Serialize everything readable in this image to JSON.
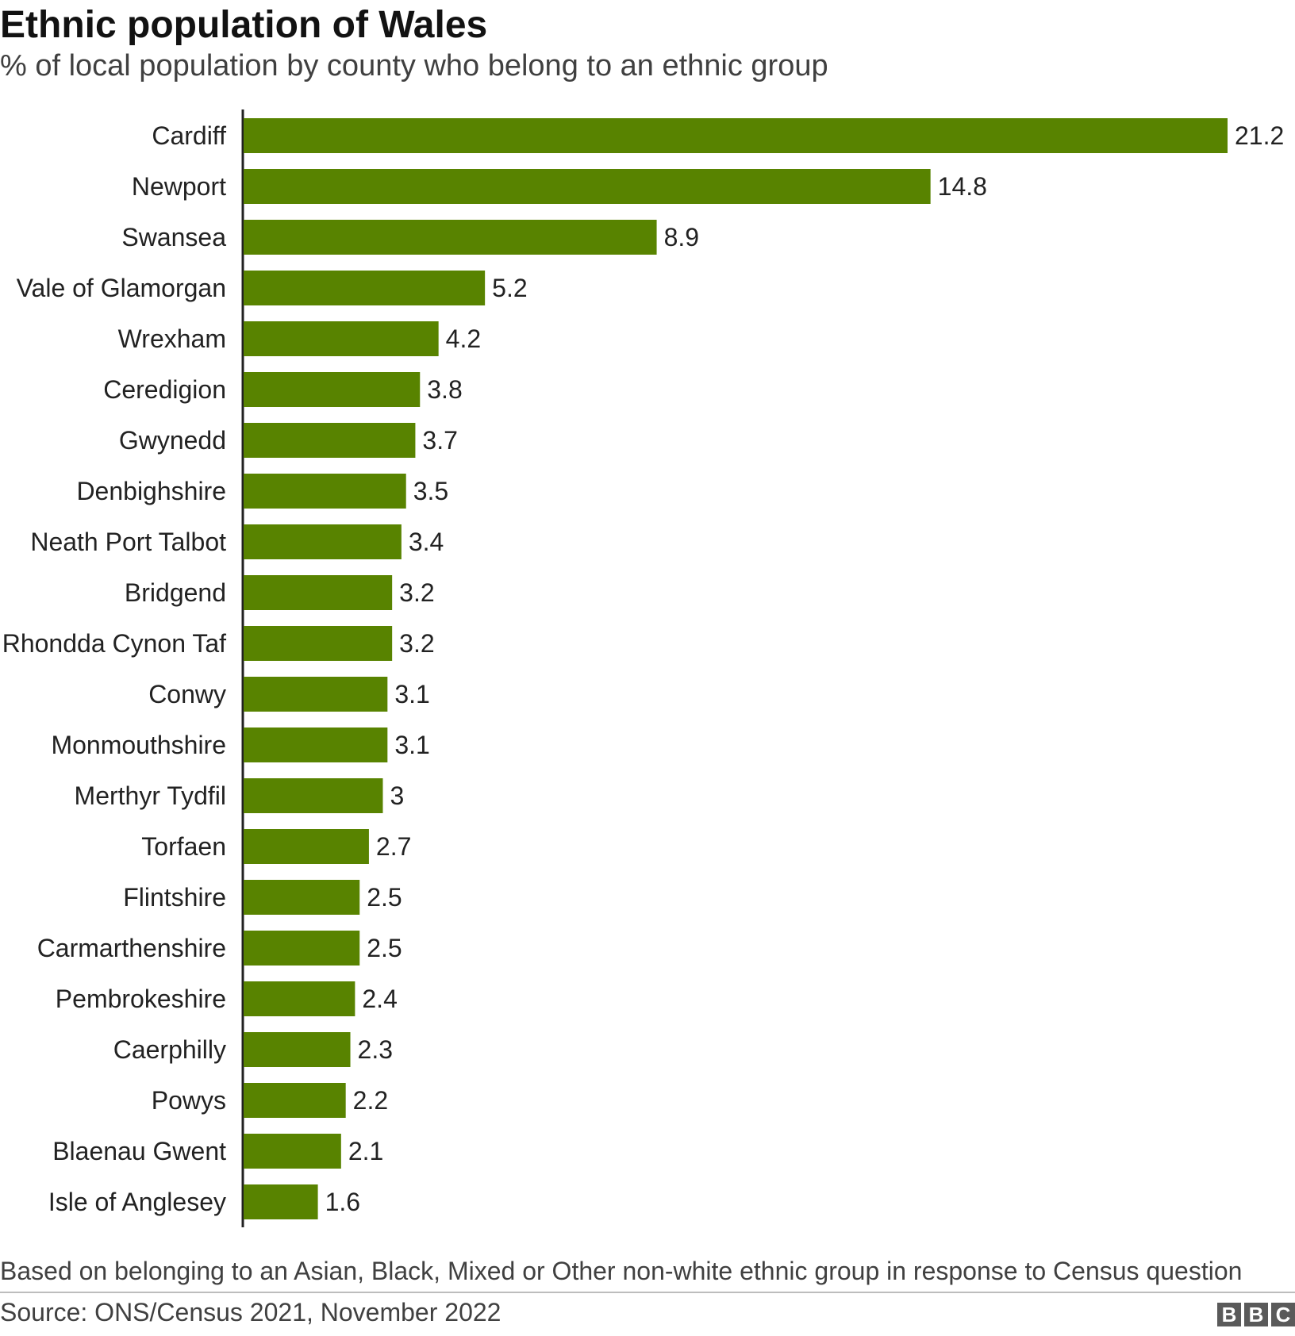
{
  "title": "Ethnic population of Wales",
  "subtitle": "% of local population by county who belong to an ethnic group",
  "footnote": "Based on belonging to an Asian, Black, Mixed or Other non-white ethnic group in response to Census question",
  "source": "Source: ONS/Census 2021, November 2022",
  "logo": [
    "B",
    "B",
    "C"
  ],
  "colors": {
    "bar": "#588300",
    "axis": "#222222"
  },
  "chart_data": {
    "type": "bar",
    "orientation": "horizontal",
    "title": "Ethnic population of Wales",
    "subtitle": "% of local population by county who belong to an ethnic group",
    "categories": [
      "Cardiff",
      "Newport",
      "Swansea",
      "Vale of Glamorgan",
      "Wrexham",
      "Ceredigion",
      "Gwynedd",
      "Denbighshire",
      "Neath Port Talbot",
      "Bridgend",
      "Rhondda Cynon Taf",
      "Conwy",
      "Monmouthshire",
      "Merthyr Tydfil",
      "Torfaen",
      "Flintshire",
      "Carmarthenshire",
      "Pembrokeshire",
      "Caerphilly",
      "Powys",
      "Blaenau Gwent",
      "Isle of Anglesey"
    ],
    "values": [
      21.2,
      14.8,
      8.9,
      5.2,
      4.2,
      3.8,
      3.7,
      3.5,
      3.4,
      3.2,
      3.2,
      3.1,
      3.1,
      3,
      2.7,
      2.5,
      2.5,
      2.4,
      2.3,
      2.2,
      2.1,
      1.6
    ],
    "value_labels": [
      "21.2",
      "14.8",
      "8.9",
      "5.2",
      "4.2",
      "3.8",
      "3.7",
      "3.5",
      "3.4",
      "3.2",
      "3.2",
      "3.1",
      "3.1",
      "3",
      "2.7",
      "2.5",
      "2.5",
      "2.4",
      "2.3",
      "2.2",
      "2.1",
      "1.6"
    ],
    "xlim": [
      0,
      21.2
    ],
    "grid": false,
    "legend": "none"
  }
}
